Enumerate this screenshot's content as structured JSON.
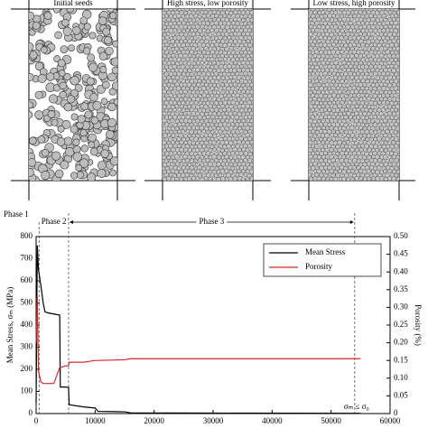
{
  "panels": [
    {
      "label": "Initial seeds"
    },
    {
      "label": "High stress, low porosity"
    },
    {
      "label": "Low stress, high porosity"
    }
  ],
  "chart_data": {
    "type": "line",
    "x": [
      0,
      200,
      400,
      800,
      1200,
      1500,
      2000,
      3000,
      4000,
      4100,
      5000,
      5500,
      5600,
      8000,
      10000,
      10500,
      15000,
      16000,
      30000,
      55000
    ],
    "series": [
      {
        "name": "Mean Stress",
        "color": "#000000",
        "values": [
          50,
          760,
          650,
          580,
          500,
          460,
          455,
          450,
          445,
          120,
          120,
          118,
          40,
          30,
          25,
          10,
          8,
          3,
          2,
          1
        ]
      },
      {
        "name": "Porosity",
        "color": "#d62728",
        "axis": "y2",
        "values": [
          0.2,
          0.33,
          0.12,
          0.09,
          0.085,
          0.085,
          0.085,
          0.085,
          0.13,
          0.13,
          0.135,
          0.135,
          0.145,
          0.145,
          0.15,
          0.15,
          0.152,
          0.155,
          0.155,
          0.155
        ]
      }
    ],
    "xlim": [
      0,
      60000
    ],
    "xticks": [
      0,
      10000,
      20000,
      30000,
      40000,
      50000,
      60000
    ],
    "ylim": [
      0,
      800
    ],
    "yticks": [
      0,
      100,
      200,
      300,
      400,
      500,
      600,
      700,
      800
    ],
    "y2lim": [
      0,
      0.5
    ],
    "y2ticks": [
      0,
      0.05,
      {
        "value": 0.1,
        "label": "0.10"
      },
      0.15,
      {
        "value": 0.2,
        "label": "0.20"
      },
      0.25,
      {
        "value": 0.3,
        "label": "0.30"
      },
      0.35,
      {
        "value": 0.4,
        "label": "0.40"
      },
      0.45,
      {
        "value": 0.5,
        "label": "0.50"
      }
    ],
    "y_label": "Mean Stress, σₘ (MPa)",
    "y2_label": "Porosity (%)",
    "phases": [
      {
        "label": "Phase 1",
        "end": 500
      },
      {
        "label": "Phase 2",
        "end": 5500
      },
      {
        "label": "Phase 3",
        "end": 54000
      }
    ],
    "annotation": "σₘ ≤ σ₀",
    "legend": "upper right"
  }
}
